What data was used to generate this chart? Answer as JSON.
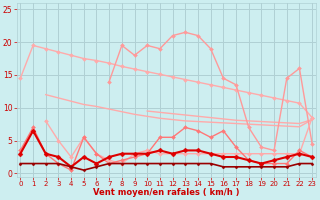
{
  "background_color": "#cdeef0",
  "grid_color": "#b0d0d4",
  "xlabel": "Vent moyen/en rafales ( km/h )",
  "xlabel_color": "#cc0000",
  "tick_color": "#cc0000",
  "ylim": [
    -0.5,
    26
  ],
  "xlim": [
    -0.3,
    23.3
  ],
  "yticks": [
    0,
    5,
    10,
    15,
    20,
    25
  ],
  "xticks": [
    0,
    1,
    2,
    3,
    4,
    5,
    6,
    7,
    8,
    9,
    10,
    11,
    12,
    13,
    14,
    15,
    16,
    17,
    18,
    19,
    20,
    21,
    22,
    23
  ],
  "series": [
    {
      "values": [
        14.5,
        19.5,
        19.0,
        18.5,
        18.0,
        17.5,
        17.2,
        16.8,
        16.3,
        15.9,
        15.5,
        15.1,
        14.7,
        14.3,
        13.9,
        13.5,
        13.1,
        12.7,
        12.3,
        11.9,
        11.5,
        11.1,
        10.7,
        8.5
      ],
      "color": "#ffaaaa",
      "linewidth": 1.0,
      "marker": "D",
      "markersize": 2.0
    },
    {
      "values": [
        null,
        null,
        12.0,
        11.5,
        11.0,
        10.5,
        10.2,
        9.8,
        9.4,
        9.0,
        8.7,
        8.4,
        8.2,
        8.0,
        7.9,
        7.8,
        7.7,
        7.6,
        7.5,
        7.4,
        7.3,
        7.2,
        7.1,
        8.2
      ],
      "color": "#ffaaaa",
      "linewidth": 1.0,
      "marker": null,
      "markersize": 0
    },
    {
      "values": [
        null,
        null,
        null,
        null,
        null,
        null,
        null,
        null,
        null,
        null,
        9.5,
        9.3,
        9.1,
        8.9,
        8.7,
        8.5,
        8.3,
        8.1,
        8.0,
        7.9,
        7.8,
        7.7,
        7.6,
        8.2
      ],
      "color": "#ffaaaa",
      "linewidth": 1.0,
      "marker": null,
      "markersize": 0
    },
    {
      "values": [
        null,
        null,
        null,
        null,
        null,
        null,
        null,
        14.0,
        19.5,
        18.0,
        19.5,
        19.0,
        21.0,
        21.5,
        21.0,
        19.0,
        14.5,
        13.5,
        7.0,
        4.0,
        3.5,
        14.5,
        16.0,
        4.5
      ],
      "color": "#ff9999",
      "linewidth": 1.0,
      "marker": "D",
      "markersize": 2.0
    },
    {
      "values": [
        null,
        null,
        8.0,
        5.0,
        2.5,
        5.5,
        3.0,
        2.0,
        1.5,
        3.0,
        3.5,
        3.0,
        3.0,
        3.0,
        3.0,
        3.0,
        3.0,
        3.0,
        3.0,
        3.0,
        3.0,
        3.0,
        3.0,
        8.5
      ],
      "color": "#ffaaaa",
      "linewidth": 1.0,
      "marker": "D",
      "markersize": 2.0
    },
    {
      "values": [
        3.5,
        7.0,
        3.0,
        1.5,
        0.5,
        5.5,
        3.0,
        1.5,
        2.0,
        2.5,
        3.0,
        5.5,
        5.5,
        7.0,
        6.5,
        5.5,
        6.5,
        4.0,
        2.0,
        1.5,
        1.5,
        1.5,
        3.5,
        2.5
      ],
      "color": "#ff7777",
      "linewidth": 1.0,
      "marker": "D",
      "markersize": 2.0
    },
    {
      "values": [
        3.0,
        6.5,
        3.0,
        2.5,
        1.0,
        2.5,
        1.5,
        2.5,
        3.0,
        3.0,
        3.0,
        3.5,
        3.0,
        3.5,
        3.5,
        3.0,
        2.5,
        2.5,
        2.0,
        1.5,
        2.0,
        2.5,
        3.0,
        2.5
      ],
      "color": "#dd0000",
      "linewidth": 1.5,
      "marker": "D",
      "markersize": 2.5
    },
    {
      "values": [
        1.5,
        1.5,
        1.5,
        1.5,
        1.0,
        0.5,
        1.0,
        1.5,
        1.5,
        1.5,
        1.5,
        1.5,
        1.5,
        1.5,
        1.5,
        1.5,
        1.0,
        1.0,
        1.0,
        1.0,
        1.0,
        1.0,
        1.5,
        1.5
      ],
      "color": "#990000",
      "linewidth": 1.2,
      "marker": "D",
      "markersize": 1.5
    }
  ]
}
